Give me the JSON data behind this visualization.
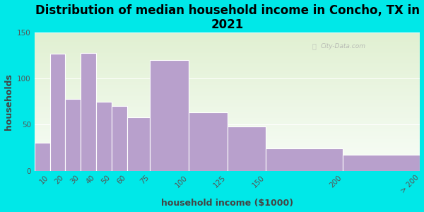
{
  "title": "Distribution of median household income in Concho, TX in\n2021",
  "xlabel": "household income ($1000)",
  "ylabel": "households",
  "bin_edges": [
    0,
    10,
    20,
    30,
    40,
    50,
    60,
    75,
    100,
    125,
    150,
    200,
    250
  ],
  "bin_labels": [
    "10",
    "20",
    "30",
    "40",
    "50",
    "60",
    "75",
    "100",
    "125",
    "150",
    "200",
    "> 200"
  ],
  "bar_values": [
    30,
    127,
    78,
    128,
    75,
    70,
    58,
    120,
    63,
    48,
    24,
    17
  ],
  "bar_color": "#b8a0cc",
  "bar_edge_color": "white",
  "ylim": [
    0,
    150
  ],
  "yticks": [
    0,
    50,
    100,
    150
  ],
  "background_outer": "#00e8e8",
  "title_fontsize": 12,
  "axis_label_fontsize": 9,
  "tick_fontsize": 7.5,
  "watermark_text": "City-Data.com",
  "title_color": "#000000",
  "axis_label_color": "#444444",
  "tick_color": "#555555"
}
